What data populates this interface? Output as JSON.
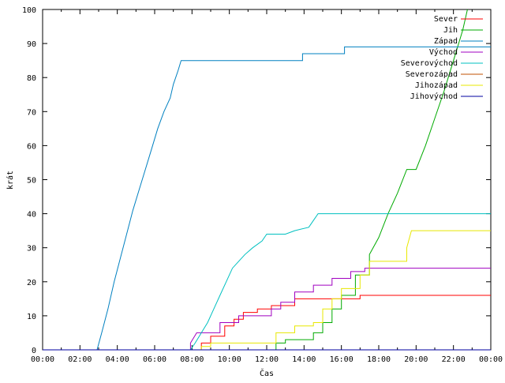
{
  "chart_data": {
    "type": "line",
    "title": "",
    "xlabel": "Čas",
    "ylabel": "krát",
    "xlim": [
      "00:00",
      "24:00"
    ],
    "ylim": [
      0,
      100
    ],
    "x_ticks": [
      "00:00",
      "02:00",
      "04:00",
      "06:00",
      "08:00",
      "10:00",
      "12:00",
      "14:00",
      "16:00",
      "18:00",
      "20:00",
      "22:00",
      "00:00"
    ],
    "y_ticks": [
      "0",
      "10",
      "20",
      "30",
      "40",
      "50",
      "60",
      "70",
      "80",
      "90",
      "100"
    ],
    "grid": false,
    "legend": "top-right",
    "series": [
      {
        "name": "Sever",
        "color": "#ff0000",
        "points": [
          [
            "00:00",
            0
          ],
          [
            "08:30",
            0
          ],
          [
            "08:30",
            2
          ],
          [
            "09:00",
            2
          ],
          [
            "09:00",
            4
          ],
          [
            "09:45",
            4
          ],
          [
            "09:45",
            7
          ],
          [
            "10:15",
            7
          ],
          [
            "10:15",
            9
          ],
          [
            "10:45",
            9
          ],
          [
            "10:45",
            11
          ],
          [
            "11:30",
            11
          ],
          [
            "11:30",
            12
          ],
          [
            "12:15",
            12
          ],
          [
            "12:15",
            13
          ],
          [
            "13:30",
            13
          ],
          [
            "13:30",
            15
          ],
          [
            "16:00",
            15
          ],
          [
            "16:00",
            15
          ],
          [
            "17:00",
            15
          ],
          [
            "17:00",
            16
          ],
          [
            "24:00",
            16
          ]
        ]
      },
      {
        "name": "Jih",
        "color": "#00aa00",
        "points": [
          [
            "00:00",
            0
          ],
          [
            "12:30",
            0
          ],
          [
            "12:30",
            2
          ],
          [
            "13:00",
            2
          ],
          [
            "13:00",
            3
          ],
          [
            "14:30",
            3
          ],
          [
            "14:30",
            5
          ],
          [
            "15:00",
            5
          ],
          [
            "15:00",
            8
          ],
          [
            "15:30",
            8
          ],
          [
            "15:30",
            12
          ],
          [
            "16:00",
            12
          ],
          [
            "16:00",
            16
          ],
          [
            "16:45",
            16
          ],
          [
            "16:45",
            22
          ],
          [
            "17:30",
            22
          ],
          [
            "17:30",
            28
          ],
          [
            "18:00",
            33
          ],
          [
            "18:30",
            40
          ],
          [
            "19:00",
            46
          ],
          [
            "19:30",
            53
          ],
          [
            "20:00",
            53
          ],
          [
            "20:30",
            60
          ],
          [
            "21:00",
            68
          ],
          [
            "21:30",
            76
          ],
          [
            "22:00",
            85
          ],
          [
            "22:30",
            94
          ],
          [
            "22:45",
            100
          ]
        ]
      },
      {
        "name": "Západ",
        "color": "#0080c0",
        "points": [
          [
            "00:00",
            0
          ],
          [
            "02:55",
            0
          ],
          [
            "03:10",
            5
          ],
          [
            "03:30",
            12
          ],
          [
            "03:50",
            20
          ],
          [
            "04:10",
            27
          ],
          [
            "04:30",
            34
          ],
          [
            "04:50",
            41
          ],
          [
            "05:10",
            47
          ],
          [
            "05:30",
            53
          ],
          [
            "05:50",
            59
          ],
          [
            "06:10",
            65
          ],
          [
            "06:30",
            70
          ],
          [
            "06:50",
            74
          ],
          [
            "07:00",
            78
          ],
          [
            "07:15",
            82
          ],
          [
            "07:25",
            85
          ],
          [
            "13:55",
            85
          ],
          [
            "13:55",
            87
          ],
          [
            "16:10",
            87
          ],
          [
            "16:10",
            89
          ],
          [
            "24:00",
            89
          ]
        ]
      },
      {
        "name": "Východ",
        "color": "#a000c0",
        "points": [
          [
            "00:00",
            0
          ],
          [
            "07:55",
            0
          ],
          [
            "07:55",
            2
          ],
          [
            "08:15",
            5
          ],
          [
            "09:30",
            5
          ],
          [
            "09:30",
            8
          ],
          [
            "10:30",
            8
          ],
          [
            "10:30",
            10
          ],
          [
            "12:15",
            10
          ],
          [
            "12:15",
            12
          ],
          [
            "12:45",
            12
          ],
          [
            "12:45",
            14
          ],
          [
            "13:30",
            14
          ],
          [
            "13:30",
            17
          ],
          [
            "14:30",
            17
          ],
          [
            "14:30",
            19
          ],
          [
            "15:30",
            19
          ],
          [
            "15:30",
            21
          ],
          [
            "16:30",
            21
          ],
          [
            "16:30",
            23
          ],
          [
            "17:15",
            23
          ],
          [
            "17:15",
            24
          ],
          [
            "24:00",
            24
          ]
        ]
      },
      {
        "name": "Severovýchod",
        "color": "#00c0c0",
        "points": [
          [
            "00:00",
            0
          ],
          [
            "07:55",
            0
          ],
          [
            "08:10",
            2
          ],
          [
            "08:30",
            5
          ],
          [
            "08:50",
            8
          ],
          [
            "09:10",
            12
          ],
          [
            "09:30",
            16
          ],
          [
            "09:50",
            20
          ],
          [
            "10:10",
            24
          ],
          [
            "10:30",
            26
          ],
          [
            "10:50",
            28
          ],
          [
            "11:15",
            30
          ],
          [
            "11:45",
            32
          ],
          [
            "12:00",
            34
          ],
          [
            "13:00",
            34
          ],
          [
            "13:30",
            35
          ],
          [
            "14:15",
            36
          ],
          [
            "14:30",
            38
          ],
          [
            "14:45",
            40
          ],
          [
            "24:00",
            40
          ]
        ]
      },
      {
        "name": "Severozápad",
        "color": "#c05000",
        "points": [
          [
            "00:00",
            0
          ],
          [
            "24:00",
            0
          ]
        ]
      },
      {
        "name": "Jihozápad",
        "color": "#e8e800",
        "points": [
          [
            "00:00",
            0
          ],
          [
            "08:30",
            0
          ],
          [
            "08:30",
            1
          ],
          [
            "09:00",
            1
          ],
          [
            "09:00",
            2
          ],
          [
            "12:30",
            2
          ],
          [
            "12:30",
            5
          ],
          [
            "13:30",
            5
          ],
          [
            "13:30",
            7
          ],
          [
            "14:30",
            7
          ],
          [
            "14:30",
            8
          ],
          [
            "15:00",
            8
          ],
          [
            "15:00",
            12
          ],
          [
            "15:30",
            12
          ],
          [
            "15:30",
            15
          ],
          [
            "16:00",
            15
          ],
          [
            "16:00",
            18
          ],
          [
            "17:00",
            18
          ],
          [
            "17:00",
            22
          ],
          [
            "17:30",
            22
          ],
          [
            "17:30",
            26
          ],
          [
            "19:30",
            26
          ],
          [
            "19:30",
            30
          ],
          [
            "19:45",
            35
          ],
          [
            "24:00",
            35
          ]
        ]
      },
      {
        "name": "Jihovýchod",
        "color": "#0000a0",
        "points": [
          [
            "00:00",
            0
          ],
          [
            "24:00",
            0
          ]
        ]
      }
    ]
  }
}
